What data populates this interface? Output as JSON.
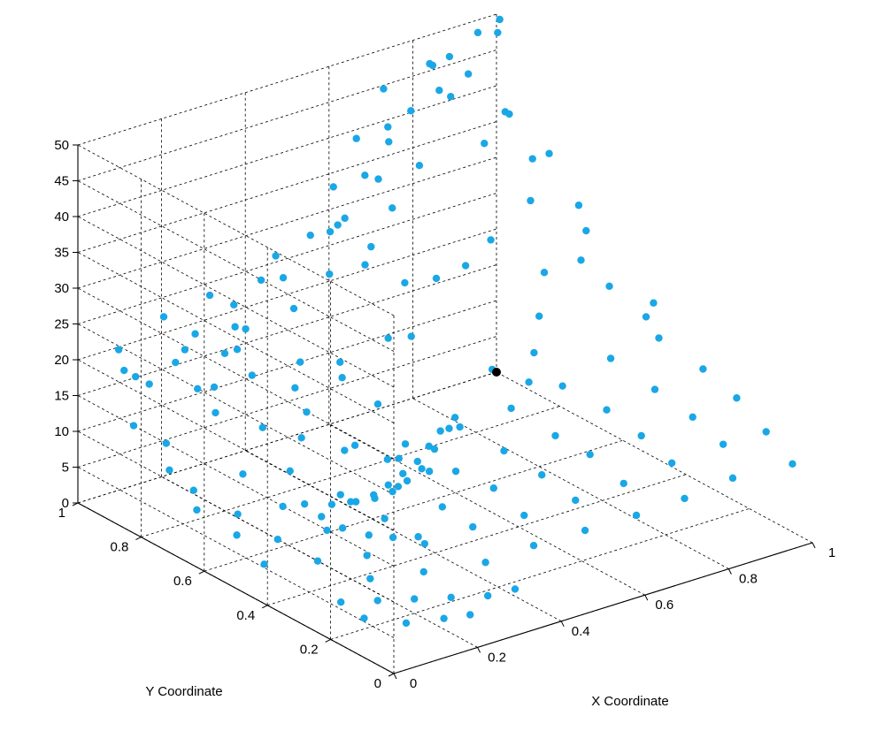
{
  "chart_data": {
    "type": "scatter",
    "title": "",
    "xlabel": "X Coordinate",
    "ylabel": "Y Coordinate",
    "zlabel": "",
    "xlim": [
      0,
      1
    ],
    "ylim": [
      0,
      1
    ],
    "zlim": [
      0,
      50
    ],
    "x_ticks": [
      "0",
      "0.2",
      "0.4",
      "0.6",
      "0.8",
      "1"
    ],
    "y_ticks": [
      "0",
      "0.2",
      "0.4",
      "0.6",
      "0.8",
      "1"
    ],
    "z_ticks": [
      "0",
      "5",
      "10",
      "15",
      "20",
      "25",
      "30",
      "35",
      "40",
      "45",
      "50"
    ],
    "grid": true,
    "colors": {
      "points": "#1aa7e6",
      "highlight": "#000000"
    },
    "highlight_point": {
      "x": 1.0,
      "y": 1.0,
      "z": 0
    },
    "series": [
      {
        "points": [
          [
            0.05,
            0.92,
            19.5
          ],
          [
            0.08,
            0.88,
            18
          ],
          [
            0.12,
            0.85,
            21
          ],
          [
            0.15,
            0.82,
            17.5
          ],
          [
            0.1,
            0.95,
            17
          ],
          [
            0.18,
            0.9,
            20.5
          ],
          [
            0.2,
            0.8,
            22
          ],
          [
            0.22,
            0.86,
            15.5
          ],
          [
            0.25,
            0.78,
            18.5
          ],
          [
            0.14,
            0.75,
            16
          ],
          [
            0.28,
            0.84,
            23
          ],
          [
            0.3,
            0.9,
            21.5
          ],
          [
            0.32,
            0.7,
            14
          ],
          [
            0.35,
            0.76,
            19
          ],
          [
            0.27,
            0.65,
            12.5
          ],
          [
            0.38,
            0.82,
            24.5
          ],
          [
            0.4,
            0.88,
            27
          ],
          [
            0.42,
            0.72,
            16.5
          ],
          [
            0.45,
            0.8,
            28.5
          ],
          [
            0.36,
            0.6,
            11
          ],
          [
            0.48,
            0.9,
            31
          ],
          [
            0.5,
            0.84,
            33.5
          ],
          [
            0.52,
            0.78,
            29
          ],
          [
            0.55,
            0.92,
            36
          ],
          [
            0.46,
            0.66,
            13.5
          ],
          [
            0.58,
            0.86,
            38.5
          ],
          [
            0.6,
            0.8,
            35
          ],
          [
            0.62,
            0.94,
            41
          ],
          [
            0.65,
            0.88,
            43.5
          ],
          [
            0.57,
            0.7,
            20
          ],
          [
            0.68,
            0.82,
            39
          ],
          [
            0.7,
            0.96,
            46
          ],
          [
            0.72,
            0.9,
            44
          ],
          [
            0.75,
            0.85,
            47.5
          ],
          [
            0.66,
            0.74,
            25.5
          ],
          [
            0.78,
            0.92,
            49
          ],
          [
            0.8,
            0.88,
            45
          ],
          [
            0.82,
            0.8,
            40
          ],
          [
            0.85,
            0.95,
            48
          ],
          [
            0.76,
            0.7,
            30
          ],
          [
            0.88,
            0.9,
            52
          ],
          [
            0.9,
            0.84,
            42
          ],
          [
            0.92,
            0.78,
            36.5
          ],
          [
            0.95,
            0.93,
            50
          ],
          [
            0.87,
            0.72,
            33
          ],
          [
            0.05,
            0.7,
            8
          ],
          [
            0.08,
            0.6,
            6.5
          ],
          [
            0.1,
            0.5,
            5
          ],
          [
            0.12,
            0.4,
            4
          ],
          [
            0.06,
            0.8,
            12
          ],
          [
            0.15,
            0.55,
            7.5
          ],
          [
            0.18,
            0.45,
            6
          ],
          [
            0.2,
            0.35,
            4.5
          ],
          [
            0.22,
            0.62,
            9.5
          ],
          [
            0.17,
            0.3,
            3
          ],
          [
            0.25,
            0.5,
            8.5
          ],
          [
            0.28,
            0.4,
            7
          ],
          [
            0.3,
            0.3,
            5.5
          ],
          [
            0.32,
            0.58,
            11.5
          ],
          [
            0.26,
            0.25,
            3.5
          ],
          [
            0.35,
            0.45,
            9
          ],
          [
            0.38,
            0.35,
            8
          ],
          [
            0.4,
            0.28,
            6.5
          ],
          [
            0.42,
            0.52,
            12
          ],
          [
            0.37,
            0.2,
            4
          ],
          [
            0.45,
            0.4,
            10.5
          ],
          [
            0.48,
            0.32,
            9.5
          ],
          [
            0.5,
            0.25,
            7
          ],
          [
            0.52,
            0.48,
            13.5
          ],
          [
            0.47,
            0.18,
            5
          ],
          [
            0.55,
            0.38,
            12
          ],
          [
            0.58,
            0.3,
            10
          ],
          [
            0.6,
            0.22,
            8
          ],
          [
            0.62,
            0.45,
            15
          ],
          [
            0.57,
            0.15,
            6
          ],
          [
            0.65,
            0.35,
            13
          ],
          [
            0.68,
            0.28,
            11.5
          ],
          [
            0.7,
            0.2,
            9
          ],
          [
            0.72,
            0.42,
            17
          ],
          [
            0.67,
            0.12,
            7
          ],
          [
            0.75,
            0.32,
            15.5
          ],
          [
            0.78,
            0.25,
            13
          ],
          [
            0.8,
            0.18,
            10.5
          ],
          [
            0.82,
            0.4,
            19.5
          ],
          [
            0.77,
            0.1,
            8
          ],
          [
            0.85,
            0.3,
            17
          ],
          [
            0.88,
            0.22,
            14.5
          ],
          [
            0.9,
            0.15,
            12
          ],
          [
            0.92,
            0.38,
            21
          ],
          [
            0.87,
            0.08,
            9.5
          ],
          [
            0.95,
            0.28,
            18.5
          ],
          [
            0.97,
            0.2,
            16
          ],
          [
            0.98,
            0.12,
            13
          ],
          [
            0.96,
            0.45,
            23.5
          ],
          [
            0.99,
            0.05,
            10
          ],
          [
            0.3,
            0.68,
            2
          ],
          [
            0.35,
            0.66,
            1.5
          ],
          [
            0.4,
            0.65,
            1.2
          ],
          [
            0.45,
            0.66,
            1
          ],
          [
            0.5,
            0.68,
            1
          ],
          [
            0.55,
            0.7,
            1.2
          ],
          [
            0.6,
            0.72,
            1.5
          ],
          [
            0.65,
            0.75,
            2
          ],
          [
            0.7,
            0.78,
            2.5
          ],
          [
            0.75,
            0.8,
            3
          ],
          [
            0.28,
            0.6,
            2.5
          ],
          [
            0.27,
            0.52,
            3
          ],
          [
            0.28,
            0.45,
            3.5
          ],
          [
            0.3,
            0.4,
            4
          ],
          [
            0.33,
            0.36,
            4.5
          ],
          [
            0.38,
            0.64,
            1.8
          ],
          [
            0.43,
            0.63,
            1.6
          ],
          [
            0.48,
            0.64,
            1.4
          ],
          [
            0.53,
            0.66,
            1.5
          ],
          [
            0.58,
            0.68,
            1.8
          ],
          [
            0.2,
            0.2,
            2
          ],
          [
            0.25,
            0.15,
            2.5
          ],
          [
            0.3,
            0.1,
            3
          ],
          [
            0.35,
            0.08,
            3.5
          ],
          [
            0.15,
            0.25,
            1.5
          ],
          [
            0.1,
            0.3,
            1
          ],
          [
            0.08,
            0.2,
            1.5
          ],
          [
            0.12,
            0.12,
            2
          ],
          [
            0.18,
            0.08,
            2.5
          ],
          [
            0.22,
            0.05,
            3
          ],
          [
            0.6,
            0.95,
            30
          ],
          [
            0.64,
            0.92,
            26
          ],
          [
            0.68,
            0.95,
            34
          ],
          [
            0.72,
            0.97,
            38
          ],
          [
            0.58,
            0.97,
            28
          ],
          [
            0.9,
            0.6,
            27
          ],
          [
            0.93,
            0.55,
            24
          ],
          [
            0.95,
            0.65,
            29
          ],
          [
            0.97,
            0.7,
            31
          ],
          [
            0.98,
            0.5,
            20
          ],
          [
            0.85,
            0.65,
            25
          ],
          [
            0.8,
            0.6,
            21
          ],
          [
            0.75,
            0.55,
            18
          ],
          [
            0.7,
            0.5,
            16
          ],
          [
            0.65,
            0.55,
            17.5
          ],
          [
            0.4,
            0.95,
            25
          ],
          [
            0.35,
            0.97,
            22
          ],
          [
            0.3,
            0.98,
            24
          ],
          [
            0.25,
            0.96,
            20
          ],
          [
            0.45,
            0.97,
            27
          ],
          [
            0.02,
            0.85,
            14
          ],
          [
            0.03,
            0.75,
            10
          ],
          [
            0.02,
            0.65,
            7
          ],
          [
            0.04,
            0.55,
            5.5
          ],
          [
            0.03,
            0.45,
            4
          ],
          [
            0.5,
            0.55,
            6
          ],
          [
            0.55,
            0.6,
            7
          ],
          [
            0.45,
            0.58,
            8
          ],
          [
            0.4,
            0.55,
            9.5
          ],
          [
            0.6,
            0.62,
            8.5
          ],
          [
            0.33,
            0.75,
            16
          ],
          [
            0.43,
            0.74,
            18
          ],
          [
            0.53,
            0.72,
            20
          ],
          [
            0.63,
            0.8,
            24
          ],
          [
            0.73,
            0.74,
            26
          ],
          [
            0.13,
            0.65,
            10
          ],
          [
            0.23,
            0.72,
            13
          ],
          [
            0.19,
            0.98,
            23
          ],
          [
            0.09,
            0.99,
            20
          ],
          [
            0.29,
            0.88,
            19
          ],
          [
            0.84,
            0.99,
            46
          ],
          [
            0.91,
            0.97,
            44
          ],
          [
            0.94,
            0.88,
            40
          ],
          [
            0.99,
            0.82,
            35
          ],
          [
            0.97,
            0.95,
            51
          ]
        ]
      }
    ]
  }
}
